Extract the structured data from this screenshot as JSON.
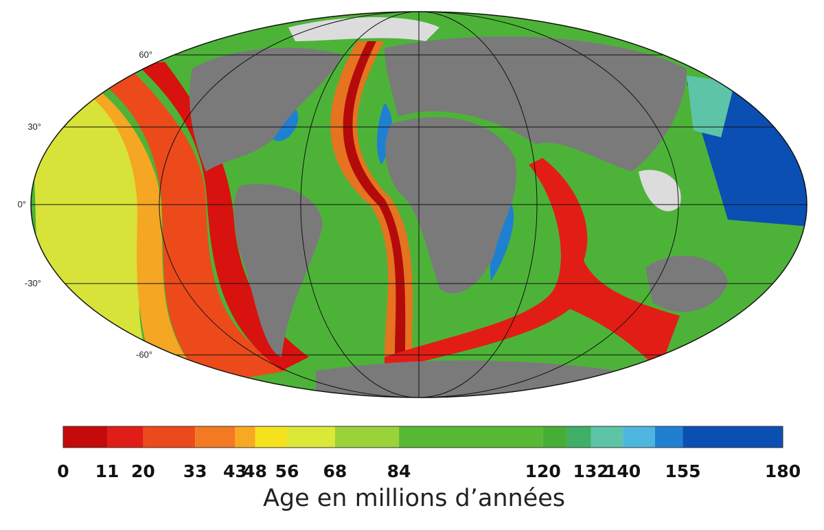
{
  "map": {
    "lat_labels": [
      "60°",
      "30°",
      "0°",
      "-30°",
      "-60°"
    ]
  },
  "colorbar": {
    "range": [
      0,
      180
    ],
    "ticks": [
      0,
      11,
      20,
      33,
      43,
      48,
      56,
      68,
      84,
      120,
      132,
      140,
      155,
      180
    ],
    "bins": [
      0,
      11,
      20,
      33,
      43,
      48,
      56,
      68,
      84,
      120,
      126,
      132,
      140,
      148,
      155,
      180
    ],
    "colors": [
      "#c40a0a",
      "#e01d16",
      "#ec4a1b",
      "#f37a22",
      "#f8a922",
      "#f5e21c",
      "#dbe836",
      "#9bd23a",
      "#57b934",
      "#47ae35",
      "#3fae66",
      "#5ec4a8",
      "#4db6df",
      "#1f80d2",
      "#0b4fb3"
    ],
    "label": "Age en millions d’années"
  }
}
